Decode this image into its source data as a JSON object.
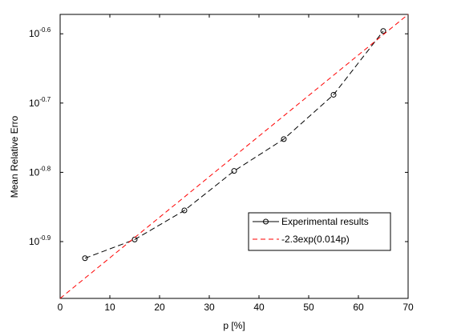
{
  "chart_data": {
    "type": "line",
    "xlabel": "p [%]",
    "ylabel": "Mean Relative Erro",
    "xlim": [
      0,
      70
    ],
    "ylim_log10": [
      -0.982,
      -0.572
    ],
    "y_scale": "log",
    "x_ticks": [
      "0",
      "10",
      "20",
      "30",
      "40",
      "50",
      "60",
      "70"
    ],
    "y_tick_exponents": [
      -0.9,
      -0.8,
      -0.7,
      -0.6
    ],
    "y_tick_base": "10",
    "grid": false,
    "legend_position": "bottom-right",
    "series": [
      {
        "name": "Experimental results",
        "color": "#000000",
        "style": "dashed-with-circle-markers",
        "x": [
          5,
          15,
          25,
          35,
          45,
          55,
          65
        ],
        "y_log10": [
          -0.924,
          -0.897,
          -0.855,
          -0.798,
          -0.752,
          -0.688,
          -0.596
        ]
      },
      {
        "name": "-2.3exp(0.014p)",
        "color": "#ff0000",
        "style": "dashed",
        "x": [
          0,
          70
        ],
        "y_log10": [
          -0.982,
          -0.572
        ]
      }
    ]
  }
}
